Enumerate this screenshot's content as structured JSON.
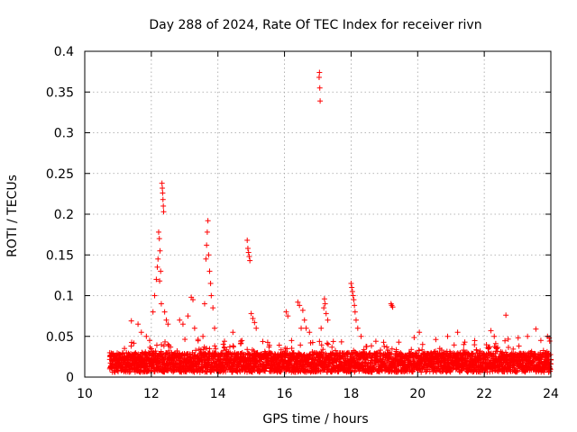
{
  "chart_data": {
    "type": "scatter",
    "title": "Day 288 of 2024, Rate Of TEC Index for receiver rivn",
    "xlabel": "GPS time / hours",
    "ylabel": "ROTI / TECUs",
    "xlim": [
      10,
      24
    ],
    "ylim": [
      0,
      0.4
    ],
    "x_ticks": [
      "10",
      "12",
      "14",
      "16",
      "18",
      "20",
      "22",
      "24"
    ],
    "y_ticks": [
      "0",
      "0.05",
      "0.1",
      "0.15",
      "0.2",
      "0.25",
      "0.3",
      "0.35",
      "0.4"
    ],
    "grid": true,
    "marker": "+",
    "color": "#ff0000",
    "baseline": {
      "x_start": 10.75,
      "x_end": 24.0,
      "y_typical": 0.018,
      "y_spread": 0.012
    },
    "series": [
      {
        "name": "ROTI",
        "points": [
          [
            12.22,
            0.178
          ],
          [
            12.24,
            0.17
          ],
          [
            12.26,
            0.155
          ],
          [
            12.28,
            0.13
          ],
          [
            12.25,
            0.118
          ],
          [
            12.3,
            0.09
          ],
          [
            12.32,
            0.238
          ],
          [
            12.33,
            0.232
          ],
          [
            12.34,
            0.226
          ],
          [
            12.35,
            0.218
          ],
          [
            12.36,
            0.21
          ],
          [
            12.37,
            0.203
          ],
          [
            12.1,
            0.1
          ],
          [
            12.15,
            0.12
          ],
          [
            12.18,
            0.135
          ],
          [
            12.2,
            0.145
          ],
          [
            12.05,
            0.08
          ],
          [
            12.4,
            0.08
          ],
          [
            12.45,
            0.07
          ],
          [
            12.5,
            0.065
          ],
          [
            11.4,
            0.069
          ],
          [
            11.6,
            0.065
          ],
          [
            11.7,
            0.055
          ],
          [
            11.85,
            0.05
          ],
          [
            11.95,
            0.045
          ],
          [
            12.85,
            0.07
          ],
          [
            12.95,
            0.065
          ],
          [
            13.1,
            0.075
          ],
          [
            13.2,
            0.098
          ],
          [
            13.25,
            0.095
          ],
          [
            13.3,
            0.06
          ],
          [
            13.7,
            0.192
          ],
          [
            13.68,
            0.178
          ],
          [
            13.66,
            0.162
          ],
          [
            13.72,
            0.15
          ],
          [
            13.64,
            0.145
          ],
          [
            13.75,
            0.13
          ],
          [
            13.78,
            0.115
          ],
          [
            13.8,
            0.1
          ],
          [
            13.6,
            0.09
          ],
          [
            13.85,
            0.085
          ],
          [
            13.9,
            0.06
          ],
          [
            13.55,
            0.05
          ],
          [
            14.45,
            0.055
          ],
          [
            14.88,
            0.168
          ],
          [
            14.9,
            0.158
          ],
          [
            14.92,
            0.153
          ],
          [
            14.94,
            0.148
          ],
          [
            14.96,
            0.143
          ],
          [
            15.0,
            0.078
          ],
          [
            15.05,
            0.072
          ],
          [
            15.1,
            0.067
          ],
          [
            15.15,
            0.06
          ],
          [
            16.05,
            0.08
          ],
          [
            16.1,
            0.075
          ],
          [
            16.4,
            0.092
          ],
          [
            16.45,
            0.088
          ],
          [
            16.55,
            0.082
          ],
          [
            16.6,
            0.07
          ],
          [
            16.65,
            0.06
          ],
          [
            16.75,
            0.055
          ],
          [
            16.5,
            0.06
          ],
          [
            17.05,
            0.374
          ],
          [
            17.04,
            0.368
          ],
          [
            17.06,
            0.355
          ],
          [
            17.07,
            0.339
          ],
          [
            17.2,
            0.096
          ],
          [
            17.22,
            0.09
          ],
          [
            17.18,
            0.085
          ],
          [
            17.25,
            0.078
          ],
          [
            17.3,
            0.07
          ],
          [
            17.1,
            0.06
          ],
          [
            18.0,
            0.115
          ],
          [
            18.02,
            0.11
          ],
          [
            18.04,
            0.105
          ],
          [
            18.06,
            0.1
          ],
          [
            18.08,
            0.095
          ],
          [
            18.1,
            0.088
          ],
          [
            18.12,
            0.08
          ],
          [
            18.15,
            0.07
          ],
          [
            18.3,
            0.05
          ],
          [
            18.2,
            0.06
          ],
          [
            19.2,
            0.09
          ],
          [
            19.22,
            0.088
          ],
          [
            19.25,
            0.086
          ],
          [
            20.05,
            0.055
          ],
          [
            20.9,
            0.05
          ],
          [
            21.2,
            0.055
          ],
          [
            22.2,
            0.057
          ],
          [
            22.3,
            0.05
          ],
          [
            22.65,
            0.076
          ],
          [
            23.3,
            0.05
          ],
          [
            23.55,
            0.059
          ],
          [
            23.7,
            0.045
          ],
          [
            23.9,
            0.05
          ],
          [
            23.95,
            0.048
          ]
        ]
      }
    ]
  }
}
